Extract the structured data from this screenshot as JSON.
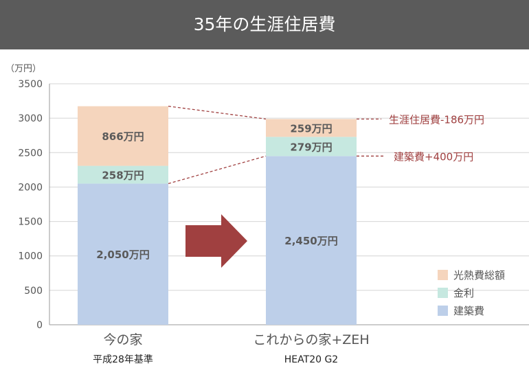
{
  "header": {
    "title": "35年の生涯住居費"
  },
  "chart_data": {
    "type": "bar",
    "stacked": true,
    "ylabel": "（万円）",
    "ylim": [
      0,
      3500
    ],
    "yticks": [
      0,
      500,
      1000,
      1500,
      2000,
      2500,
      3000,
      3500
    ],
    "grid": true,
    "categories": [
      "今の家",
      "これからの家+ZEH"
    ],
    "category_sublabels": [
      "平成28年基準",
      "HEAT20 G2"
    ],
    "series": [
      {
        "name": "建築費",
        "values": [
          2050,
          2450
        ],
        "labels": [
          "2,050万円",
          "2,450万円"
        ],
        "color": "#bdcfe9"
      },
      {
        "name": "金利",
        "values": [
          258,
          279
        ],
        "labels": [
          "258万円",
          "279万円"
        ],
        "color": "#c6e8e0"
      },
      {
        "name": "光熱費総額",
        "values": [
          866,
          259
        ],
        "labels": [
          "866万円",
          "259万円"
        ],
        "color": "#f5d5bd"
      }
    ],
    "legend_position": "bottom-right",
    "legend_order": [
      "光熱費総額",
      "金利",
      "建築費"
    ],
    "annotations": [
      {
        "text": "生涯住居費-186万円",
        "from_total": 3174,
        "to_total": 2988
      },
      {
        "text": "建築費+400万円",
        "from_total": 2050,
        "to_total": 2450
      }
    ],
    "arrow_color": "#a04040",
    "annotation_color": "#a04040"
  }
}
